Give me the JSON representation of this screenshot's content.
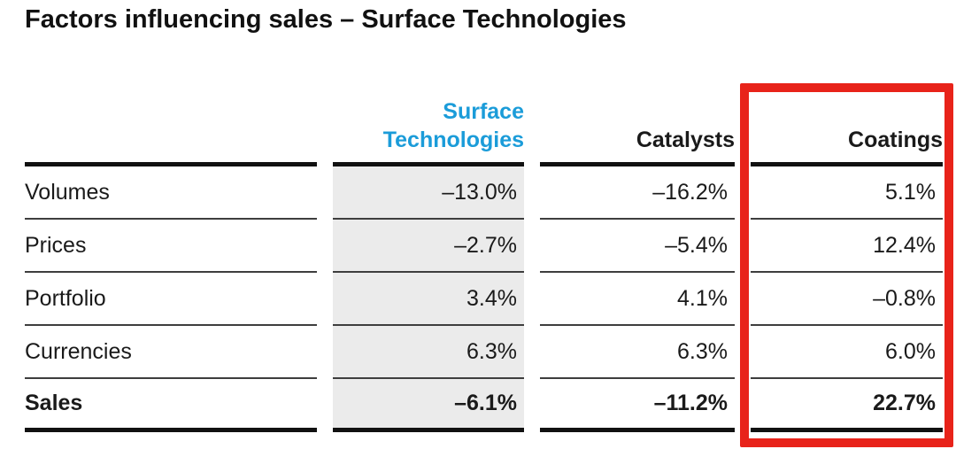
{
  "title": "Factors influencing sales – Surface Technologies",
  "chart_data": {
    "type": "table",
    "title": "Factors influencing sales – Surface Technologies",
    "columns": [
      "",
      "Surface Technologies",
      "Catalysts",
      "Coatings"
    ],
    "rows": [
      {
        "label": "Volumes",
        "values": [
          "–13.0%",
          "–16.2%",
          "5.1%"
        ]
      },
      {
        "label": "Prices",
        "values": [
          "–2.7%",
          "–5.4%",
          "12.4%"
        ]
      },
      {
        "label": "Portfolio",
        "values": [
          "3.4%",
          "4.1%",
          "–0.8%"
        ]
      },
      {
        "label": "Currencies",
        "values": [
          "6.3%",
          "6.3%",
          "6.0%"
        ]
      },
      {
        "label": "Sales",
        "values": [
          "–6.1%",
          "–11.2%",
          "22.7%"
        ],
        "emphasis": true
      }
    ],
    "column_styles": {
      "Surface Technologies": {
        "header_text_color": "#1b9cd9",
        "column_background": "#ebebeb"
      }
    },
    "annotations": [
      {
        "type": "highlight-box",
        "target_column": "Coatings",
        "color": "#e8231a"
      }
    ],
    "layout_hints": {
      "value_alignment": "right",
      "row_separators": "thin-gray",
      "table_frame": "thick-black-top-bottom"
    }
  },
  "colors": {
    "accent_blue": "#1b9cd9",
    "highlight_gray": "#ebebeb",
    "annotation_red": "#e8231a",
    "text": "#1a1a1a"
  }
}
